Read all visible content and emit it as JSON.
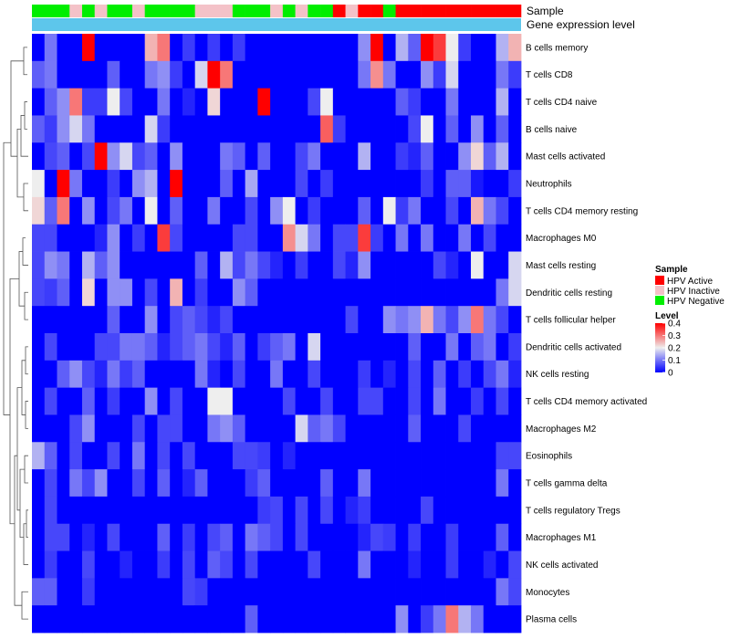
{
  "chart_data": {
    "type": "heatmap",
    "title": "",
    "annotation_labels": {
      "sample": "Sample",
      "gene": "Gene expression level"
    },
    "rows": [
      "B cells memory",
      "T cells CD8",
      "T cells CD4 naive",
      "B cells naive",
      "Mast cells activated",
      "Neutrophils",
      "T cells CD4 memory resting",
      "Macrophages M0",
      "Mast cells resting",
      "Dendritic cells resting",
      "T cells follicular helper",
      "Dendritic cells activated",
      "NK cells resting",
      "T cells CD4 memory activated",
      "Macrophages M2",
      "Eosinophils",
      "T cells gamma delta",
      "T cells regulatory  Tregs",
      "Macrophages M1",
      "NK cells activated",
      "Monocytes",
      "Plasma cells"
    ],
    "sample_groups": [
      "HPV Negative",
      "HPV Negative",
      "HPV Negative",
      "HPV Inactive",
      "HPV Negative",
      "HPV Inactive",
      "HPV Negative",
      "HPV Negative",
      "HPV Inactive",
      "HPV Negative",
      "HPV Negative",
      "HPV Negative",
      "HPV Negative",
      "HPV Inactive",
      "HPV Inactive",
      "HPV Inactive",
      "HPV Negative",
      "HPV Negative",
      "HPV Negative",
      "HPV Inactive",
      "HPV Negative",
      "HPV Inactive",
      "HPV Negative",
      "HPV Negative",
      "HPV Active",
      "HPV Inactive",
      "HPV Active",
      "HPV Active",
      "HPV Negative",
      "HPV Active",
      "HPV Active",
      "HPV Active",
      "HPV Active",
      "HPV Active",
      "HPV Active",
      "HPV Active",
      "HPV Active",
      "HPV Active",
      "HPV Active"
    ],
    "values": [
      [
        0,
        0.1,
        0,
        0,
        0.4,
        0,
        0,
        0,
        0,
        0.25,
        0.3,
        0,
        0.05,
        0,
        0.05,
        0,
        0.05,
        0,
        0,
        0,
        0,
        0,
        0,
        0,
        0,
        0,
        0.12,
        0.4,
        0,
        0.15,
        0.08,
        0.4,
        0.35,
        0.2,
        0.05,
        0,
        0,
        0.15,
        0.25
      ],
      [
        0.08,
        0.1,
        0,
        0,
        0,
        0,
        0.08,
        0,
        0,
        0.1,
        0.12,
        0.05,
        0,
        0.18,
        0.4,
        0.3,
        0,
        0,
        0,
        0,
        0,
        0,
        0,
        0,
        0,
        0,
        0.1,
        0.28,
        0.1,
        0,
        0,
        0.12,
        0.05,
        0.18,
        0,
        0,
        0,
        0.1,
        0.05
      ],
      [
        0,
        0.08,
        0.12,
        0.3,
        0.05,
        0.05,
        0.2,
        0.06,
        0,
        0,
        0.1,
        0,
        0.03,
        0,
        0.22,
        0,
        0,
        0,
        0.4,
        0,
        0,
        0,
        0.06,
        0.2,
        0,
        0,
        0,
        0,
        0,
        0.08,
        0.05,
        0,
        0,
        0.1,
        0,
        0,
        0,
        0.15,
        0
      ],
      [
        0.08,
        0.05,
        0.12,
        0.18,
        0.1,
        0,
        0,
        0,
        0,
        0.18,
        0.05,
        0,
        0,
        0,
        0,
        0,
        0,
        0,
        0,
        0,
        0,
        0,
        0,
        0.32,
        0.05,
        0,
        0,
        0,
        0,
        0,
        0.06,
        0.2,
        0,
        0.08,
        0,
        0.12,
        0,
        0.08,
        0
      ],
      [
        0,
        0.06,
        0.08,
        0,
        0.06,
        0.4,
        0.12,
        0.18,
        0.06,
        0.08,
        0,
        0.12,
        0,
        0,
        0,
        0.1,
        0.08,
        0,
        0.08,
        0,
        0,
        0.06,
        0.1,
        0,
        0,
        0,
        0.15,
        0,
        0,
        0.05,
        0.03,
        0.08,
        0,
        0,
        0.12,
        0.22,
        0.08,
        0.15,
        0
      ],
      [
        0.2,
        0,
        0.4,
        0.1,
        0,
        0,
        0.05,
        0,
        0.12,
        0.15,
        0,
        0.4,
        0,
        0,
        0,
        0.08,
        0,
        0.14,
        0,
        0,
        0,
        0.06,
        0,
        0.05,
        0,
        0,
        0,
        0,
        0,
        0,
        0,
        0.05,
        0,
        0.08,
        0.08,
        0.02,
        0,
        0,
        0.05
      ],
      [
        0.22,
        0.08,
        0.3,
        0,
        0.12,
        0,
        0.06,
        0.1,
        0,
        0.2,
        0,
        0.08,
        0,
        0,
        0.1,
        0,
        0,
        0.06,
        0,
        0.12,
        0.2,
        0,
        0.05,
        0,
        0,
        0,
        0.08,
        0,
        0.2,
        0.05,
        0.1,
        0,
        0,
        0.06,
        0,
        0.25,
        0.1,
        0.06,
        0
      ],
      [
        0.06,
        0.06,
        0,
        0,
        0,
        0.03,
        0.12,
        0,
        0.05,
        0,
        0.35,
        0.06,
        0,
        0,
        0,
        0,
        0.06,
        0.06,
        0,
        0,
        0.28,
        0.18,
        0.1,
        0,
        0.06,
        0.06,
        0.35,
        0.05,
        0,
        0.1,
        0,
        0.1,
        0,
        0,
        0.1,
        0,
        0.06,
        0,
        0
      ],
      [
        0.06,
        0.12,
        0.1,
        0,
        0.15,
        0.08,
        0.12,
        0,
        0,
        0,
        0,
        0,
        0,
        0.08,
        0,
        0.15,
        0.06,
        0.1,
        0.06,
        0.03,
        0,
        0.05,
        0,
        0,
        0.06,
        0.03,
        0.12,
        0,
        0,
        0,
        0,
        0,
        0.06,
        0.03,
        0,
        0.2,
        0,
        0,
        0.18
      ],
      [
        0.06,
        0.05,
        0.08,
        0,
        0.22,
        0,
        0.12,
        0.12,
        0,
        0.06,
        0,
        0.25,
        0,
        0.05,
        0,
        0,
        0.12,
        0.08,
        0,
        0,
        0,
        0,
        0,
        0,
        0,
        0,
        0,
        0,
        0,
        0,
        0,
        0,
        0,
        0,
        0,
        0,
        0,
        0.1,
        0.18
      ],
      [
        0,
        0,
        0,
        0,
        0,
        0,
        0.08,
        0,
        0,
        0.12,
        0,
        0.06,
        0.08,
        0.06,
        0.03,
        0.06,
        0,
        0,
        0,
        0,
        0,
        0,
        0,
        0,
        0,
        0.06,
        0,
        0,
        0.12,
        0.1,
        0.12,
        0.25,
        0.1,
        0.06,
        0.12,
        0.3,
        0.1,
        0.06,
        0
      ],
      [
        0,
        0.06,
        0,
        0,
        0,
        0.06,
        0.06,
        0.1,
        0.1,
        0.08,
        0.03,
        0.06,
        0.08,
        0.1,
        0.06,
        0.03,
        0.08,
        0,
        0.05,
        0.08,
        0.1,
        0,
        0.18,
        0,
        0,
        0,
        0,
        0,
        0,
        0,
        0.08,
        0,
        0,
        0.1,
        0,
        0.08,
        0.1,
        0,
        0.05
      ],
      [
        0,
        0,
        0.08,
        0.12,
        0.06,
        0.03,
        0.1,
        0.05,
        0.08,
        0,
        0,
        0,
        0,
        0.1,
        0.03,
        0,
        0.06,
        0,
        0,
        0.1,
        0,
        0,
        0.06,
        0,
        0,
        0,
        0.05,
        0,
        0.03,
        0,
        0.06,
        0,
        0.08,
        0,
        0.05,
        0,
        0.06,
        0.1,
        0.03
      ],
      [
        0,
        0.06,
        0,
        0,
        0.08,
        0,
        0.05,
        0,
        0,
        0.12,
        0,
        0.06,
        0,
        0,
        0.2,
        0.2,
        0,
        0,
        0,
        0,
        0.06,
        0,
        0,
        0.06,
        0,
        0,
        0.06,
        0.06,
        0,
        0,
        0.06,
        0,
        0.1,
        0,
        0,
        0.05,
        0,
        0.06,
        0
      ],
      [
        0,
        0,
        0,
        0.06,
        0.12,
        0,
        0,
        0,
        0.06,
        0,
        0.06,
        0.06,
        0,
        0,
        0.1,
        0.12,
        0.08,
        0,
        0,
        0,
        0,
        0.18,
        0.08,
        0.1,
        0.06,
        0,
        0,
        0,
        0,
        0,
        0.08,
        0,
        0,
        0,
        0.06,
        0,
        0,
        0,
        0
      ],
      [
        0.15,
        0.08,
        0,
        0.06,
        0,
        0,
        0.06,
        0,
        0.1,
        0,
        0.06,
        0,
        0.06,
        0,
        0,
        0,
        0.06,
        0.06,
        0.05,
        0,
        0.03,
        0,
        0,
        0,
        0,
        0,
        0,
        0,
        0,
        0,
        0,
        0,
        0,
        0,
        0,
        0,
        0,
        0.06,
        0.06
      ],
      [
        0,
        0.06,
        0,
        0.1,
        0.06,
        0.12,
        0,
        0,
        0.06,
        0,
        0.08,
        0,
        0.03,
        0.08,
        0,
        0,
        0,
        0.05,
        0.08,
        0,
        0,
        0,
        0,
        0.08,
        0,
        0,
        0.1,
        0,
        0,
        0,
        0,
        0,
        0,
        0,
        0,
        0,
        0,
        0.1,
        0
      ],
      [
        0,
        0.06,
        0,
        0,
        0,
        0,
        0,
        0,
        0,
        0,
        0,
        0,
        0,
        0,
        0,
        0,
        0,
        0,
        0.05,
        0.06,
        0,
        0.06,
        0,
        0.06,
        0,
        0.03,
        0.05,
        0,
        0,
        0,
        0,
        0.06,
        0,
        0,
        0,
        0,
        0,
        0,
        0
      ],
      [
        0,
        0.06,
        0.06,
        0,
        0.03,
        0,
        0.06,
        0,
        0,
        0,
        0.08,
        0,
        0.05,
        0,
        0.06,
        0.08,
        0,
        0.1,
        0.08,
        0.06,
        0,
        0.06,
        0,
        0,
        0,
        0,
        0.03,
        0.06,
        0.05,
        0,
        0.05,
        0,
        0,
        0.05,
        0,
        0,
        0,
        0.08,
        0
      ],
      [
        0,
        0.05,
        0,
        0,
        0.06,
        0,
        0,
        0.03,
        0,
        0,
        0.05,
        0,
        0.06,
        0,
        0.08,
        0.06,
        0,
        0.06,
        0,
        0,
        0,
        0,
        0.06,
        0,
        0,
        0,
        0.1,
        0,
        0,
        0,
        0.03,
        0,
        0,
        0.05,
        0,
        0,
        0.03,
        0,
        0.06
      ],
      [
        0.08,
        0.08,
        0,
        0,
        0.05,
        0,
        0,
        0,
        0,
        0,
        0,
        0,
        0.06,
        0.05,
        0,
        0,
        0,
        0,
        0,
        0,
        0,
        0,
        0,
        0,
        0,
        0,
        0,
        0,
        0,
        0,
        0,
        0,
        0,
        0,
        0,
        0,
        0,
        0.1,
        0.06
      ],
      [
        0,
        0,
        0,
        0,
        0,
        0,
        0,
        0,
        0,
        0,
        0,
        0,
        0,
        0,
        0,
        0,
        0,
        0.08,
        0,
        0,
        0,
        0,
        0,
        0,
        0,
        0,
        0,
        0,
        0,
        0.12,
        0,
        0.05,
        0.1,
        0.3,
        0.15,
        0.1,
        0,
        0,
        0
      ]
    ],
    "color_scale": {
      "min_color": "#0000FF",
      "mid_color": "#EEEEEE",
      "max_color": "#FF0000",
      "limits": [
        0,
        0.4
      ]
    },
    "gene_bar_color": "#5DC6EB",
    "legend": {
      "sample_title": "Sample",
      "entries": [
        {
          "label": "HPV Active",
          "color": "#FF0000"
        },
        {
          "label": "HPV Inactive",
          "color": "#F4C2C8"
        },
        {
          "label": "HPV Negative",
          "color": "#00EE00"
        }
      ],
      "level_title": "Level",
      "level_ticks": [
        "0.4",
        "0.3",
        "0.2",
        "0.1",
        "0"
      ],
      "level_tick_values": [
        0.4,
        0.3,
        0.2,
        0.1,
        0
      ]
    }
  }
}
